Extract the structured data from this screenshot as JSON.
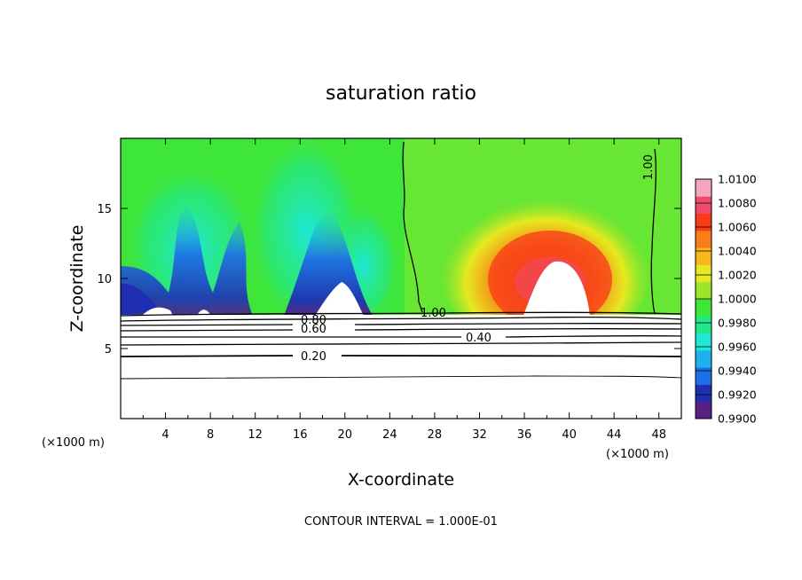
{
  "chart_data": {
    "type": "heatmap",
    "title": "saturation ratio",
    "xlabel": "X-coordinate",
    "ylabel": "Z-coordinate",
    "x_unit": "(×1000 m)",
    "xlim": [
      0,
      50
    ],
    "ylim": [
      0,
      20
    ],
    "x_ticks": [
      "4",
      "8",
      "12",
      "16",
      "20",
      "24",
      "28",
      "32",
      "36",
      "40",
      "44",
      "48"
    ],
    "y_ticks": [
      "5",
      "10",
      "15"
    ],
    "colorbar": {
      "ticks": [
        "1.0100",
        "1.0080",
        "1.0060",
        "1.0040",
        "1.0020",
        "1.0000",
        "0.9980",
        "0.9960",
        "0.9940",
        "0.9920",
        "0.9900"
      ],
      "range": [
        0.99,
        1.01
      ],
      "colors": [
        "#5a1f82",
        "#1f2fb3",
        "#1e6fe6",
        "#1fb0f0",
        "#1ee8d8",
        "#22e88a",
        "#3fe63a",
        "#9ae62c",
        "#e6e91f",
        "#f8b81c",
        "#f87e18",
        "#f83a18",
        "#f04a6a",
        "#f5a6bc"
      ]
    },
    "contour_labels": [
      "1.00",
      "1.00",
      "0.80",
      "0.60",
      "0.40",
      "0.20"
    ],
    "contour_interval_text": "CONTOUR INTERVAL = 1.000E-01",
    "features": {
      "terrain_ridge_height_km": 7.5,
      "subsaturated_minima_x_km": [
        3,
        7,
        14,
        19.5
      ],
      "supersaturated_max_x_km": 37,
      "supersaturated_max_value": 1.009,
      "contour_1_00_x_km": [
        26,
        47.5
      ]
    }
  }
}
